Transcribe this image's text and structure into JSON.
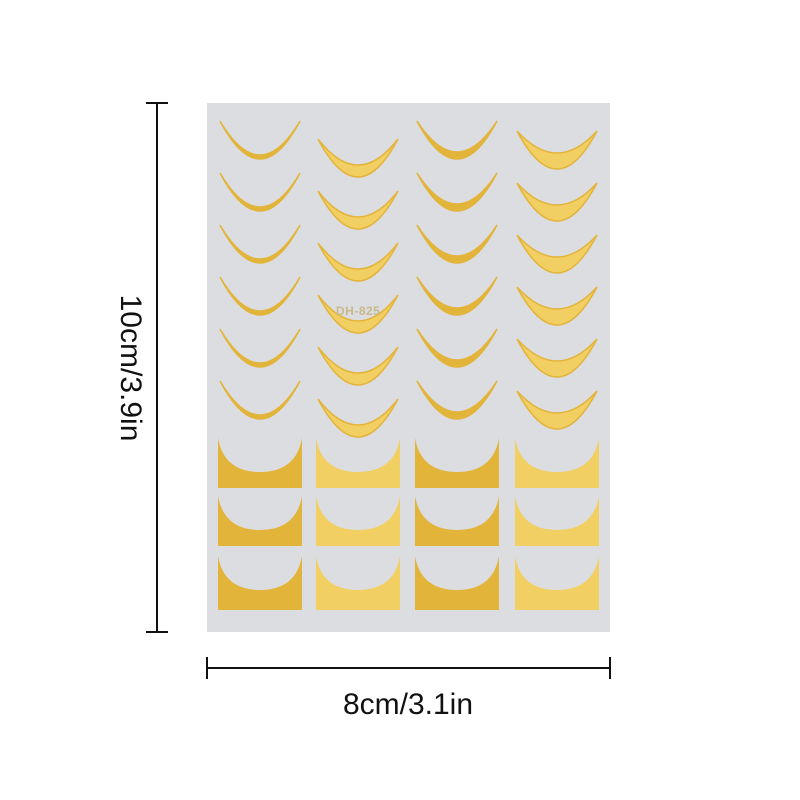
{
  "product": {
    "sheet_code": "DH-825",
    "height_label": "10cm/3.9in",
    "width_label": "8cm/3.1in",
    "colors": {
      "sheet": "#dcdde1",
      "gold": "#e3b43a",
      "gold_light": "#f2cf62",
      "line": "#111111"
    }
  }
}
